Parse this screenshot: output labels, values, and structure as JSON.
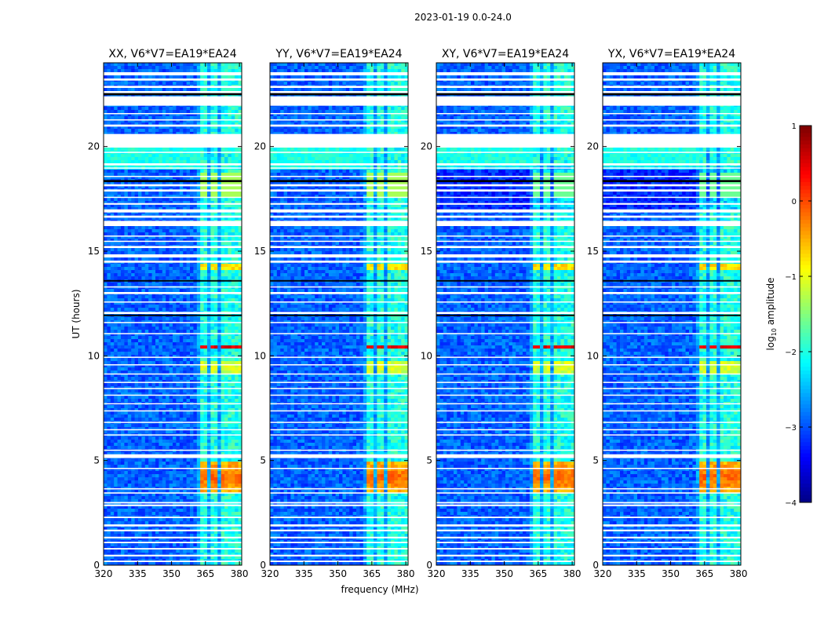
{
  "figure_title": "2023-01-19 0.0-24.0",
  "chart_data": {
    "type": "heatmap",
    "suptitle": "2023-01-19 0.0-24.0",
    "shared_xlabel": "frequency (MHz)",
    "shared_ylabel": "UT (hours)",
    "xlim": [
      320,
      381
    ],
    "ylim": [
      0,
      24
    ],
    "x_ticks": [
      "320",
      "335",
      "350",
      "365",
      "380"
    ],
    "y_ticks": [
      "0",
      "5",
      "10",
      "15",
      "20"
    ],
    "panels": [
      {
        "title": "XX, V6*V7=EA19*EA24"
      },
      {
        "title": "YY, V6*V7=EA19*EA24"
      },
      {
        "title": "XY, V6*V7=EA19*EA24"
      },
      {
        "title": "YX, V6*V7=EA19*EA24"
      }
    ],
    "colorbar": {
      "label_prefix": "log",
      "label_subscript": "10",
      "label_suffix": " amplitude",
      "range": [
        -4,
        1
      ],
      "ticks": [
        "1",
        "0",
        "−1",
        "−2",
        "−3",
        "−4"
      ],
      "colormap": "jet"
    },
    "channel_band_MHz": [
      361,
      381
    ],
    "channel_centers_MHz": [
      364,
      369,
      374,
      379
    ],
    "gap_rows_UT": [
      [
        0.15,
        0.22
      ],
      [
        0.42,
        0.5
      ],
      [
        0.75,
        0.82
      ],
      [
        1.05,
        1.12
      ],
      [
        1.28,
        1.36
      ],
      [
        1.62,
        1.7
      ],
      [
        1.85,
        1.95
      ],
      [
        2.25,
        2.32
      ],
      [
        2.82,
        2.9
      ],
      [
        2.95,
        3.02
      ],
      [
        3.42,
        3.48
      ],
      [
        3.62,
        3.68
      ],
      [
        4.6,
        4.65
      ],
      [
        5.12,
        5.3
      ],
      [
        5.48,
        5.52
      ],
      [
        6.2,
        6.25
      ],
      [
        6.45,
        6.5
      ],
      [
        6.8,
        6.85
      ],
      [
        7.35,
        7.4
      ],
      [
        7.7,
        7.74
      ],
      [
        8.1,
        8.15
      ],
      [
        8.42,
        8.47
      ],
      [
        8.72,
        8.76
      ],
      [
        9.12,
        9.16
      ],
      [
        9.55,
        9.6
      ],
      [
        9.92,
        9.96
      ],
      [
        11.05,
        11.09
      ],
      [
        11.58,
        11.62
      ],
      [
        12.0,
        12.1
      ],
      [
        12.55,
        12.6
      ],
      [
        12.95,
        13.05
      ],
      [
        13.28,
        13.32
      ],
      [
        14.45,
        14.55
      ],
      [
        14.7,
        14.85
      ],
      [
        15.15,
        15.25
      ],
      [
        15.45,
        15.5
      ],
      [
        15.7,
        15.75
      ],
      [
        16.2,
        16.45
      ],
      [
        16.6,
        16.7
      ],
      [
        16.85,
        17.0
      ],
      [
        17.22,
        17.3
      ],
      [
        17.55,
        17.6
      ],
      [
        17.85,
        17.95
      ],
      [
        18.1,
        18.2
      ],
      [
        18.55,
        18.6
      ],
      [
        18.95,
        19.0
      ],
      [
        19.1,
        19.2
      ],
      [
        19.7,
        19.75
      ],
      [
        19.95,
        20.6
      ],
      [
        20.95,
        21.05
      ],
      [
        21.25,
        21.3
      ],
      [
        21.55,
        21.6
      ],
      [
        21.95,
        22.4
      ],
      [
        22.55,
        22.65
      ],
      [
        22.8,
        22.9
      ],
      [
        23.15,
        23.25
      ],
      [
        23.4,
        23.55
      ]
    ],
    "black_rows_UT": [
      [
        13.55,
        13.62
      ],
      [
        11.9,
        11.97
      ],
      [
        18.3,
        18.4
      ],
      [
        22.45,
        22.55
      ]
    ],
    "rfi_events": [
      {
        "center_UT": 4.2,
        "half_width_UT": 0.7,
        "level": -0.1,
        "note": "strong burst across channels"
      },
      {
        "center_UT": 10.45,
        "half_width_UT": 0.1,
        "level": 0.5,
        "note": "sharp red line at ~10.4 h"
      },
      {
        "center_UT": 14.3,
        "half_width_UT": 0.15,
        "level": -0.7
      },
      {
        "center_UT": 9.5,
        "half_width_UT": 0.3,
        "level": -1.0
      }
    ],
    "background_level": -2.9
  }
}
